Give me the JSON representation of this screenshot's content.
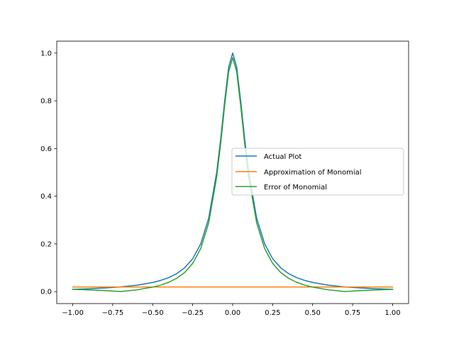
{
  "chart_data": {
    "type": "line",
    "title": "",
    "xlabel": "",
    "ylabel": "",
    "xlim": [
      -1.1,
      1.1
    ],
    "ylim": [
      -0.05,
      1.05
    ],
    "grid": false,
    "legend_position": "center-right",
    "x_ticks": [
      -1.0,
      -0.75,
      -0.5,
      -0.25,
      0.0,
      0.25,
      0.5,
      0.75,
      1.0
    ],
    "x_tick_labels": [
      "−1.00",
      "−0.75",
      "−0.50",
      "−0.25",
      "0.00",
      "0.25",
      "0.50",
      "0.75",
      "1.00"
    ],
    "y_ticks": [
      0.0,
      0.2,
      0.4,
      0.6,
      0.8,
      1.0
    ],
    "y_tick_labels": [
      "0.0",
      "0.2",
      "0.4",
      "0.6",
      "0.8",
      "1.0"
    ],
    "series": [
      {
        "name": "Actual Plot",
        "color": "#1f77b4",
        "x": [
          -1.0,
          -0.9,
          -0.8,
          -0.7,
          -0.6,
          -0.5,
          -0.45,
          -0.4,
          -0.35,
          -0.3,
          -0.25,
          -0.2,
          -0.15,
          -0.1,
          -0.075,
          -0.05,
          -0.025,
          0.0,
          0.025,
          0.05,
          0.075,
          0.1,
          0.15,
          0.2,
          0.25,
          0.3,
          0.35,
          0.4,
          0.45,
          0.5,
          0.6,
          0.7,
          0.8,
          0.9,
          1.0
        ],
        "y": [
          0.0099,
          0.0122,
          0.0154,
          0.02,
          0.027,
          0.0385,
          0.0471,
          0.0588,
          0.0755,
          0.1,
          0.1379,
          0.2,
          0.3077,
          0.5,
          0.64,
          0.8,
          0.9412,
          1.0,
          0.9412,
          0.8,
          0.64,
          0.5,
          0.3077,
          0.2,
          0.1379,
          0.1,
          0.0755,
          0.0588,
          0.0471,
          0.0385,
          0.027,
          0.02,
          0.0154,
          0.0122,
          0.0099
        ]
      },
      {
        "name": "Approximation of Monomial",
        "color": "#ff7f0e",
        "x": [
          -1.0,
          1.0
        ],
        "y": [
          0.0196,
          0.0196
        ]
      },
      {
        "name": "Error of Monomial",
        "color": "#2ca02c",
        "x": [
          -1.0,
          -0.9,
          -0.8,
          -0.7,
          -0.6,
          -0.5,
          -0.45,
          -0.4,
          -0.35,
          -0.3,
          -0.25,
          -0.2,
          -0.15,
          -0.1,
          -0.075,
          -0.05,
          -0.025,
          0.0,
          0.025,
          0.05,
          0.075,
          0.1,
          0.15,
          0.2,
          0.25,
          0.3,
          0.35,
          0.4,
          0.45,
          0.5,
          0.6,
          0.7,
          0.8,
          0.9,
          1.0
        ],
        "y": [
          0.0097,
          0.0074,
          0.0042,
          0.0004,
          0.0074,
          0.0189,
          0.0275,
          0.0392,
          0.0559,
          0.0804,
          0.1183,
          0.1804,
          0.2881,
          0.4804,
          0.6204,
          0.7804,
          0.9216,
          0.9804,
          0.9216,
          0.7804,
          0.6204,
          0.4804,
          0.2881,
          0.1804,
          0.1183,
          0.0804,
          0.0559,
          0.0392,
          0.0275,
          0.0189,
          0.0074,
          0.0004,
          0.0042,
          0.0074,
          0.0097
        ]
      }
    ]
  }
}
